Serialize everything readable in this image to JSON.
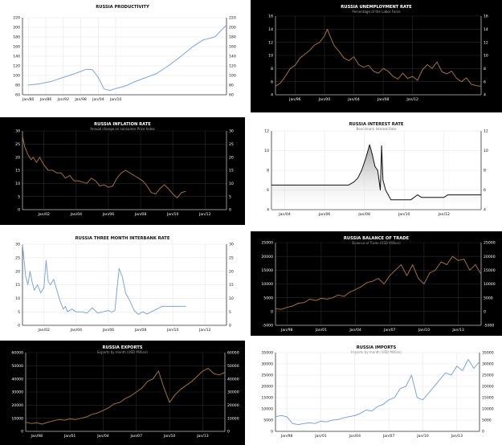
{
  "panels": [
    {
      "title": "RUSSIA PRODUCTIVITY",
      "subtitle": "",
      "theme": "light",
      "line_color": "#7ea6d8",
      "fill": false,
      "chart_data": {
        "type": "line",
        "title": "RUSSIA PRODUCTIVITY",
        "x_ticks": [
          "Jan/80",
          "Jan/86",
          "Jan/92",
          "Jan/98",
          "Jan/04",
          "Jan/10"
        ],
        "ylim": [
          60,
          220
        ],
        "y_ticks": [
          60,
          80,
          100,
          120,
          140,
          160,
          180,
          200,
          220
        ],
        "left_axis": true,
        "right_axis": true,
        "series": [
          {
            "x": [
              0,
              2,
              4,
              6,
              8,
              10,
              11,
              12,
              13,
              14,
              15,
              16,
              17,
              18,
              20,
              22,
              24,
              26,
              28,
              30,
              32,
              34
            ],
            "values": [
              80,
              83,
              88,
              96,
              104,
              113,
              112,
              96,
              72,
              69,
              73,
              76,
              80,
              86,
              95,
              104,
              120,
              138,
              158,
              174,
              180,
              205
            ]
          }
        ]
      }
    },
    {
      "title": "RUSSIA UNEMPLOYMENT RATE",
      "subtitle": "Percentage of the Labor Force",
      "theme": "dark",
      "line_color": "#a0703a",
      "fill": false,
      "chart_data": {
        "type": "line",
        "title": "RUSSIA UNEMPLOYMENT RATE",
        "subtitle": "Percentage of the Labor Force",
        "x_ticks": [
          "Jan/96",
          "Jan/00",
          "Jan/04",
          "Jan/08",
          "Jan/12"
        ],
        "ylim": [
          4,
          16
        ],
        "y_ticks": [
          4,
          6,
          8,
          10,
          12,
          14,
          16
        ],
        "left_axis": true,
        "right_axis": true,
        "series": [
          {
            "x": [
              -2,
              -1.5,
              -1,
              -0.5,
              0,
              0.5,
              1,
              1.5,
              2,
              2.5,
              3,
              3.3,
              3.6,
              4,
              4.5,
              5,
              5.5,
              6,
              6.5,
              7,
              7.5,
              8,
              8.5,
              9,
              9.5,
              10,
              10.5,
              11,
              11.5,
              12,
              12.5,
              13,
              13.5,
              14,
              14.5,
              15,
              15.5,
              16,
              16.5,
              17,
              17.5,
              18,
              18.5,
              19
            ],
            "values": [
              5.3,
              5.8,
              6.8,
              8.0,
              8.5,
              9.6,
              10.2,
              10.8,
              11.6,
              12.0,
              13.0,
              14.0,
              12.8,
              11.5,
              10.6,
              9.6,
              9.2,
              9.8,
              8.6,
              8.2,
              8.5,
              7.6,
              7.3,
              8.0,
              7.6,
              6.8,
              6.4,
              7.3,
              6.5,
              6.8,
              6.2,
              7.8,
              8.6,
              8.0,
              9.0,
              7.5,
              7.2,
              7.6,
              6.5,
              6.0,
              6.6,
              5.6,
              5.4,
              5.3
            ]
          }
        ]
      }
    },
    {
      "title": "RUSSIA INFLATION RATE",
      "subtitle": "Annual change on consumer Price Index",
      "theme": "dark",
      "line_color": "#a0703a",
      "fill": false,
      "chart_data": {
        "type": "line",
        "title": "RUSSIA INFLATION RATE",
        "subtitle": "Annual change on consumer Price Index",
        "x_ticks": [
          "Jan/02",
          "Jan/04",
          "Jan/06",
          "Jan/08",
          "Jan/10",
          "Jan/12"
        ],
        "ylim": [
          0,
          30
        ],
        "y_ticks": [
          0,
          5,
          10,
          15,
          20,
          25,
          30
        ],
        "left_axis": true,
        "right_axis": true,
        "series": [
          {
            "x": [
              -2,
              -1.8,
              -1.5,
              -1.2,
              -1,
              -0.7,
              -0.4,
              0,
              0.4,
              0.8,
              1.2,
              1.6,
              2,
              2.4,
              2.8,
              3.2,
              3.6,
              4,
              4.4,
              4.8,
              5.2,
              5.6,
              6,
              6.4,
              6.8,
              7.2,
              7.6,
              8,
              8.4,
              8.8,
              9.2,
              9.6,
              10,
              10.4,
              10.8,
              11.2,
              11.6,
              12,
              12.4,
              12.8,
              13.2
            ],
            "values": [
              28,
              24,
              21,
              19,
              20,
              18,
              20,
              17,
              15,
              15,
              14,
              14,
              12,
              13,
              11,
              11,
              10.5,
              10,
              12,
              11,
              9,
              9.5,
              8.5,
              9,
              12,
              14,
              15,
              14,
              13,
              12,
              11,
              9,
              6.5,
              6,
              8,
              9.5,
              8,
              6,
              4.5,
              6.5,
              7
            ]
          }
        ]
      }
    },
    {
      "title": "RUSSIA INTEREST RATE",
      "subtitle": "Benchmark Interest Rate",
      "theme": "light",
      "line_color": "#111111",
      "fill": true,
      "chart_data": {
        "type": "area",
        "title": "RUSSIA INTEREST RATE",
        "subtitle": "Benchmark Interest Rate",
        "x_ticks": [
          "Jan/04",
          "Jan/06",
          "Jan/08",
          "Jan/10",
          "Jan/12"
        ],
        "ylim": [
          4,
          12
        ],
        "y_ticks": [
          4,
          6,
          8,
          10,
          12
        ],
        "left_axis": true,
        "right_axis": true,
        "series": [
          {
            "x": [
              -1,
              4.8,
              5.2,
              5.5,
              5.8,
              6.1,
              6.4,
              6.6,
              6.8,
              7.0,
              7.2,
              7.3,
              7.4,
              7.6,
              7.8,
              8.0,
              8.6,
              9.5,
              10.0,
              10.3,
              10.6,
              11.5,
              12.0,
              12.3,
              12.6,
              14.8
            ],
            "values": [
              6.5,
              6.5,
              6.8,
              7.2,
              8.0,
              9.2,
              10.6,
              9.6,
              8.4,
              8.0,
              6.0,
              10.5,
              7.0,
              6.0,
              5.5,
              5.0,
              5.0,
              5.0,
              5.5,
              5.25,
              5.25,
              5.25,
              5.25,
              5.5,
              5.5,
              5.5
            ]
          }
        ]
      }
    },
    {
      "title": "RUSSIA THREE MONTH INTERBANK RATE",
      "subtitle": "",
      "theme": "light",
      "line_color": "#7ea6d8",
      "fill": false,
      "chart_data": {
        "type": "line",
        "title": "RUSSIA THREE MONTH INTERBANK RATE",
        "x_ticks": [
          "Jan/02",
          "Jan/04",
          "Jan/06",
          "Jan/08",
          "Jan/10",
          "Jan/12"
        ],
        "ylim": [
          0,
          30
        ],
        "y_ticks": [
          0,
          5,
          10,
          15,
          20,
          25,
          30
        ],
        "left_axis": true,
        "right_axis": true,
        "series": [
          {
            "x": [
              -2,
              -1.9,
              -1.7,
              -1.5,
              -1.3,
              -1.1,
              -0.9,
              -0.6,
              -0.3,
              0,
              0.2,
              0.4,
              0.6,
              0.9,
              1.2,
              1.5,
              1.8,
              2.0,
              2.2,
              2.6,
              3,
              3.5,
              4,
              4.5,
              5,
              5.5,
              6,
              6.3,
              6.6,
              7.0,
              7.3,
              7.6,
              8.0,
              8.4,
              8.8,
              9.2,
              9.6,
              10,
              10.5,
              11,
              12,
              13.2
            ],
            "values": [
              30,
              26,
              18,
              15,
              20,
              16,
              13,
              15,
              12,
              14,
              24,
              16,
              15,
              17,
              13,
              9,
              6,
              7,
              5,
              6,
              5,
              5,
              4.5,
              6.5,
              4.5,
              5,
              5.5,
              4.8,
              5.5,
              21,
              18,
              12,
              9,
              5.5,
              4,
              5,
              4.2,
              5,
              6,
              7,
              7,
              7
            ]
          }
        ]
      }
    },
    {
      "title": "RUSSIA BALANCE OF TRADE",
      "subtitle": "Balance of Trade (USD Million)",
      "theme": "dark",
      "line_color": "#a0703a",
      "fill": false,
      "chart_data": {
        "type": "line",
        "title": "RUSSIA BALANCE OF TRADE",
        "subtitle": "Balance of Trade (USD Million)",
        "x_ticks": [
          "Jan/98",
          "Jan/01",
          "Jan/04",
          "Jan/07",
          "Jan/10",
          "Jan/13"
        ],
        "ylim": [
          -5000,
          25000
        ],
        "y_ticks": [
          -5000,
          0,
          5000,
          10000,
          15000,
          20000,
          25000
        ],
        "left_axis": true,
        "right_axis": true,
        "series": [
          {
            "x": [
              -1,
              -0.5,
              0,
              0.5,
              1,
              1.5,
              2,
              2.5,
              3,
              3.5,
              4,
              4.5,
              5,
              5.5,
              6,
              6.5,
              7,
              7.5,
              8,
              8.5,
              9,
              9.5,
              10,
              10.5,
              11,
              11.5,
              12,
              12.5,
              13,
              13.5,
              14,
              14.5,
              15,
              15.5,
              16,
              16.5,
              17
            ],
            "values": [
              1000,
              800,
              1500,
              2000,
              3000,
              3200,
              4500,
              4000,
              4800,
              4500,
              5000,
              6000,
              5500,
              7000,
              8000,
              9000,
              10500,
              11000,
              12000,
              10000,
              13000,
              15000,
              17000,
              13000,
              17000,
              12000,
              10000,
              14000,
              15000,
              18000,
              17000,
              20000,
              18500,
              19000,
              15000,
              17000,
              13500
            ]
          }
        ]
      }
    },
    {
      "title": "RUSSIA EXPORTS",
      "subtitle": "Exports by month (USD Million)",
      "theme": "dark",
      "line_color": "#a0703a",
      "fill": false,
      "chart_data": {
        "type": "line",
        "title": "RUSSIA EXPORTS",
        "subtitle": "Exports by month (USD Million)",
        "x_ticks": [
          "Jan/98",
          "Jan/01",
          "Jan/04",
          "Jan/07",
          "Jan/10",
          "Jan/13"
        ],
        "ylim": [
          0,
          60000
        ],
        "y_ticks": [
          0,
          10000,
          20000,
          30000,
          40000,
          50000,
          60000
        ],
        "left_axis": true,
        "right_axis": true,
        "series": [
          {
            "x": [
              -1,
              -0.5,
              0,
              0.5,
              1,
              1.5,
              2,
              2.5,
              3,
              3.5,
              4,
              4.5,
              5,
              5.5,
              6,
              6.5,
              7,
              7.5,
              8,
              8.5,
              9,
              9.5,
              10,
              10.5,
              11,
              11.5,
              12,
              12.5,
              13,
              13.5,
              14,
              14.5,
              15,
              15.5,
              16,
              16.5,
              17
            ],
            "values": [
              7000,
              6000,
              6500,
              5500,
              7000,
              8000,
              9000,
              8500,
              9500,
              9000,
              10000,
              11000,
              13000,
              14000,
              16000,
              18000,
              21000,
              22000,
              25000,
              27000,
              30000,
              33000,
              38000,
              40000,
              46000,
              33000,
              22000,
              28000,
              32000,
              35000,
              38000,
              42000,
              46000,
              48000,
              44000,
              43000,
              45000
            ]
          }
        ]
      }
    },
    {
      "title": "RUSSIA IMPORTS",
      "subtitle": "Imports by month (USD Million)",
      "theme": "light",
      "line_color": "#7ea6d8",
      "fill": false,
      "chart_data": {
        "type": "line",
        "title": "RUSSIA IMPORTS",
        "subtitle": "Imports by month (USD Million)",
        "x_ticks": [
          "Jan/98",
          "Jan/01",
          "Jan/04",
          "Jan/07",
          "Jan/10",
          "Jan/13"
        ],
        "ylim": [
          0,
          35000
        ],
        "y_ticks": [
          0,
          5000,
          10000,
          15000,
          20000,
          25000,
          30000,
          35000
        ],
        "left_axis": true,
        "right_axis": true,
        "series": [
          {
            "x": [
              -1,
              -0.5,
              0,
              0.5,
              1,
              1.5,
              2,
              2.5,
              3,
              3.5,
              4,
              4.5,
              5,
              5.5,
              6,
              6.5,
              7,
              7.5,
              8,
              8.5,
              9,
              9.5,
              10,
              10.5,
              11,
              11.5,
              12,
              12.5,
              13,
              13.5,
              14,
              14.5,
              15,
              15.5,
              16,
              16.5,
              17
            ],
            "values": [
              6500,
              7000,
              6500,
              3500,
              3000,
              3500,
              3800,
              3500,
              4500,
              4200,
              5000,
              5200,
              6000,
              6500,
              7000,
              8000,
              9500,
              9000,
              11000,
              12000,
              14000,
              15000,
              19000,
              20000,
              25000,
              15000,
              14000,
              17000,
              20000,
              23000,
              26000,
              25000,
              29000,
              27000,
              32000,
              28000,
              31000
            ]
          }
        ]
      }
    }
  ]
}
